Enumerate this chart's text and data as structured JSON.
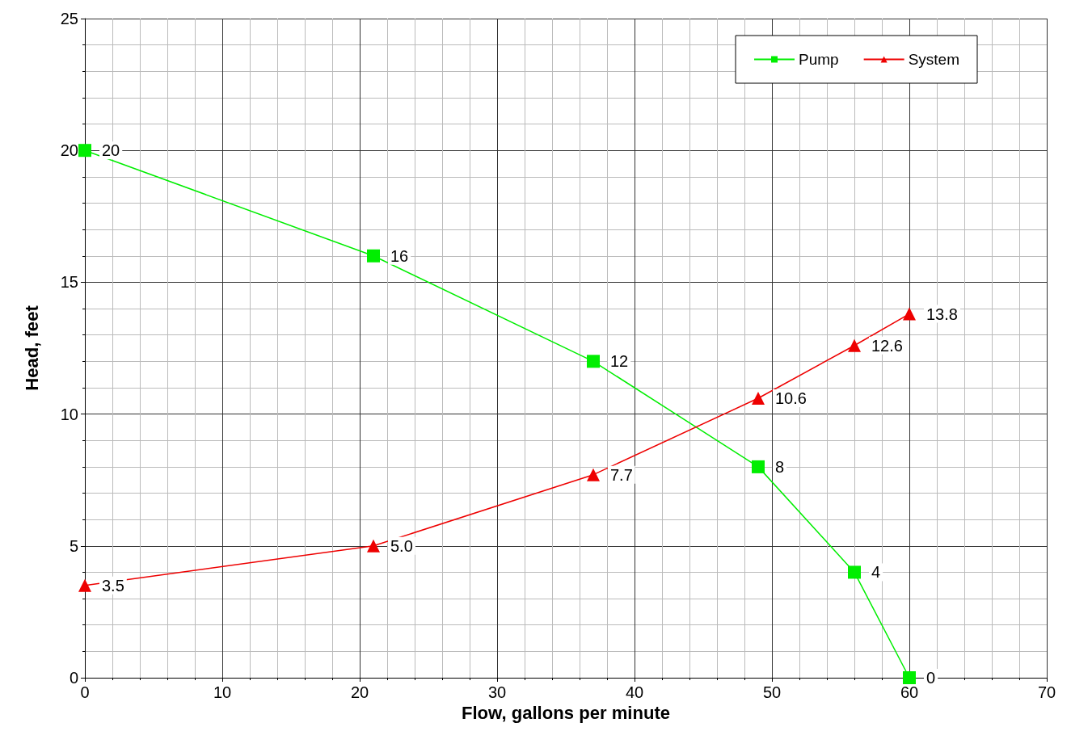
{
  "chart_data": {
    "type": "line",
    "xlabel": "Flow, gallons per minute",
    "ylabel": "Head, feet",
    "x": [
      0,
      21,
      37,
      49,
      56,
      60
    ],
    "series": [
      {
        "name": "Pump",
        "color": "#00ee00",
        "marker": "square",
        "values": [
          20,
          16,
          12,
          8,
          4,
          0
        ],
        "value_labels": [
          "20",
          "16",
          "12",
          "8",
          "4",
          "0"
        ]
      },
      {
        "name": "System",
        "color": "#ee0000",
        "marker": "triangle",
        "values": [
          3.5,
          5.0,
          7.7,
          10.6,
          12.6,
          13.8
        ],
        "value_labels": [
          "3.5",
          "5.0",
          "7.7",
          "10.6",
          "12.6",
          "13.8"
        ]
      }
    ],
    "xlim": [
      0,
      70
    ],
    "xticks": [
      0,
      10,
      20,
      30,
      40,
      50,
      60,
      70
    ],
    "ylim": [
      0,
      25
    ],
    "yticks": [
      0,
      5,
      10,
      15,
      20,
      25
    ],
    "grid": true,
    "legend": "top right",
    "line_style": "solid"
  }
}
